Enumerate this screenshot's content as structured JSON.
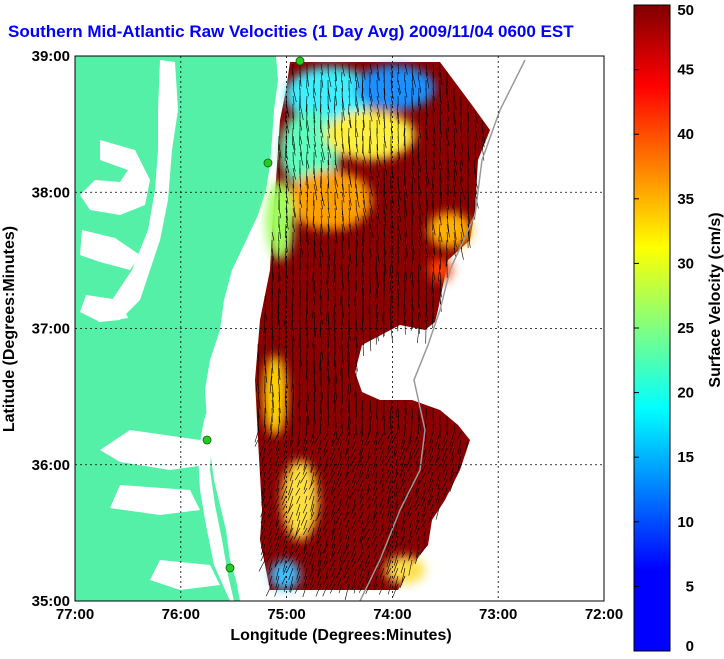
{
  "title": "Southern Mid-Atlantic Raw Velocities (1 Day Avg) 2009/11/04 0600 EST",
  "map": {
    "xlabel": "Longitude (Degrees:Minutes)",
    "ylabel": "Latitude (Degrees:Minutes)",
    "x_ticks": [
      "77:00",
      "76:00",
      "75:00",
      "74:00",
      "73:00",
      "72:00"
    ],
    "y_ticks": [
      "39:00",
      "38:00",
      "37:00",
      "36:00",
      "35:00"
    ],
    "xlim": [
      -77,
      -72
    ],
    "ylim": [
      35,
      39
    ],
    "grid": true,
    "land_color": "#55f0a8",
    "colors": {
      "grid": "#000000",
      "arrows": "#000000",
      "station": "#22cc22"
    }
  },
  "colorbar": {
    "label": "Surface Velocity (cm/s)",
    "ticks": [
      "0",
      "5",
      "10",
      "15",
      "20",
      "25",
      "30",
      "35",
      "40",
      "45",
      "50"
    ],
    "range": [
      0,
      50
    ],
    "colormap": "jet"
  }
}
